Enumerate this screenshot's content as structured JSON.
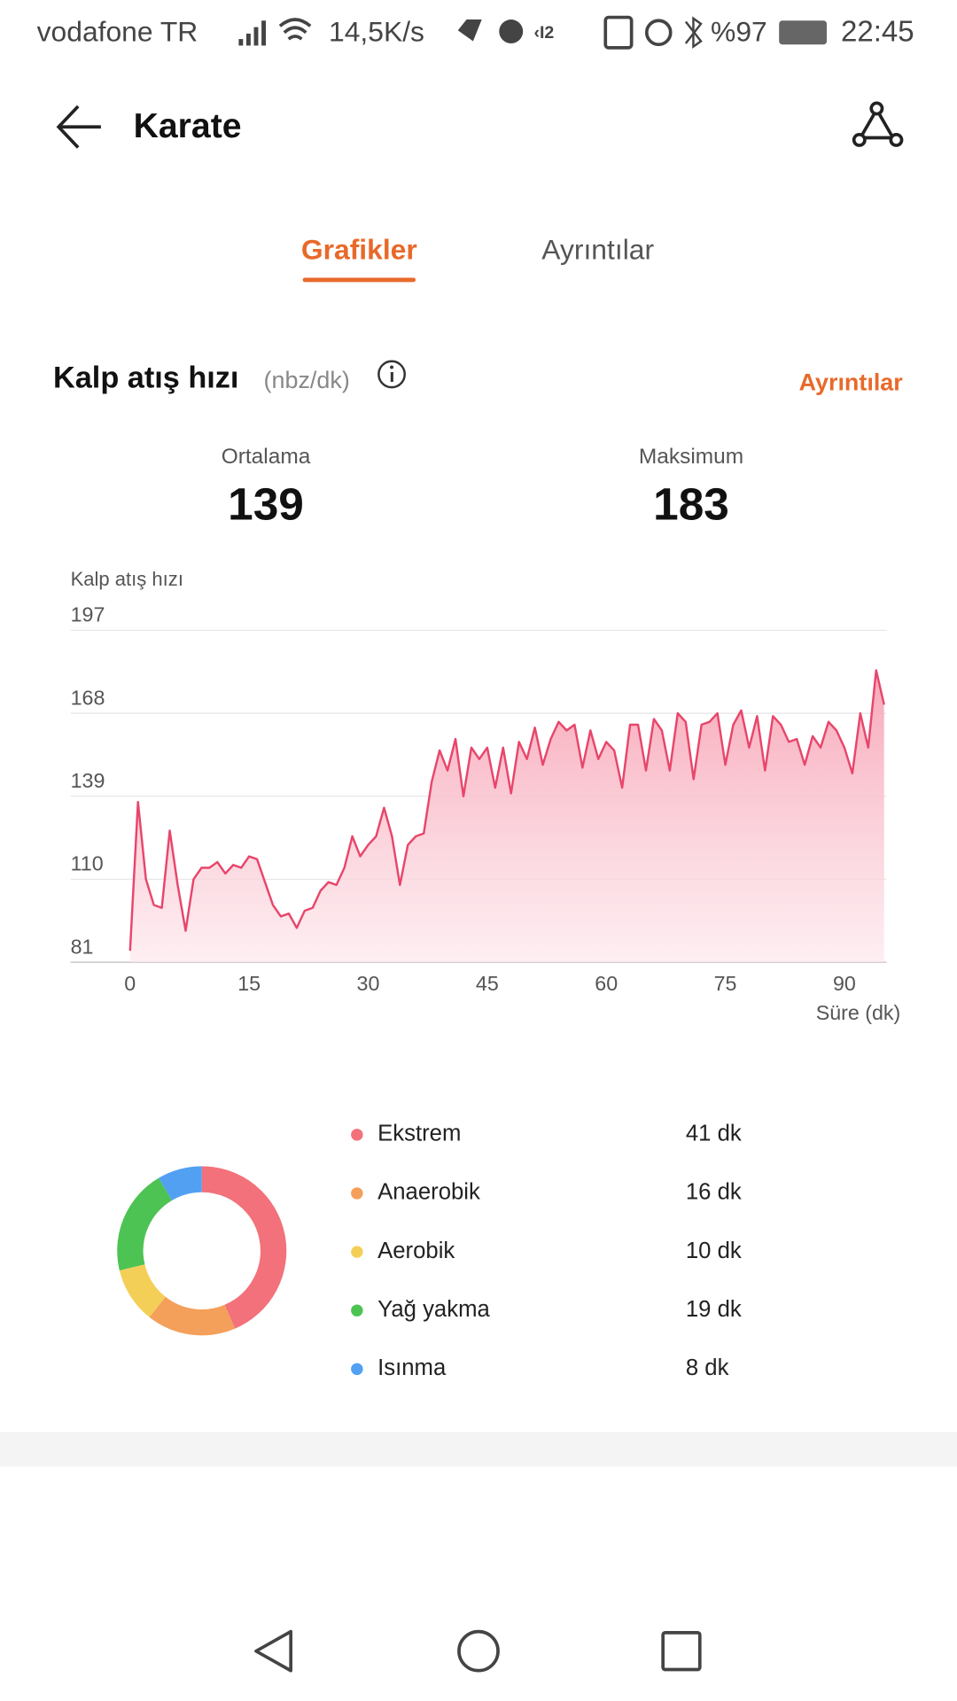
{
  "status_bar": {
    "carrier": "vodafone TR",
    "speed": "14,5K/s",
    "battery": "%97",
    "time": "22:45"
  },
  "header": {
    "title": "Karate"
  },
  "tabs": [
    "Grafikler",
    "Ayrıntılar"
  ],
  "section": {
    "title": "Kalp atış hızı",
    "unit": "(nbz/dk)",
    "link": "Ayrıntılar"
  },
  "stats": [
    {
      "label": "Ortalama",
      "value": 139
    },
    {
      "label": "Maksimum",
      "value": 183
    }
  ],
  "chart_data": [
    {
      "type": "line",
      "ylabel": "Kalp atış hızı",
      "xlabel": "Süre (dk)",
      "x": [
        0,
        1,
        2,
        3,
        4,
        5,
        6,
        7,
        8,
        9,
        10,
        11,
        12,
        13,
        14,
        15,
        16,
        17,
        18,
        19,
        20,
        21,
        22,
        23,
        24,
        25,
        26,
        27,
        28,
        29,
        30,
        31,
        32,
        33,
        34,
        35,
        36,
        37,
        38,
        39,
        40,
        41,
        42,
        43,
        44,
        45,
        46,
        47,
        48,
        49,
        50,
        51,
        52,
        53,
        54,
        55,
        56,
        57,
        58,
        59,
        60,
        61,
        62,
        63,
        64,
        65,
        66,
        67,
        68,
        69,
        70,
        71,
        72,
        73,
        74,
        75,
        76,
        77,
        78,
        79,
        80,
        81,
        82,
        83,
        84,
        85,
        86,
        87,
        88,
        89,
        90,
        91,
        92,
        93,
        94,
        95
      ],
      "series": [
        {
          "color": "#e8466b",
          "values": [
            85,
            137,
            110,
            101,
            100,
            127,
            108,
            92,
            110,
            114,
            114,
            116,
            112,
            115,
            114,
            118,
            117,
            109,
            101,
            97,
            98,
            93,
            99,
            100,
            106,
            109,
            108,
            114,
            125,
            118,
            122,
            125,
            135,
            125,
            108,
            122,
            125,
            126,
            144,
            155,
            148,
            159,
            139,
            156,
            152,
            156,
            142,
            156,
            140,
            158,
            152,
            163,
            150,
            159,
            165,
            162,
            164,
            149,
            162,
            152,
            158,
            155,
            142,
            164,
            164,
            148,
            166,
            162,
            148,
            168,
            165,
            145,
            164,
            165,
            168,
            150,
            164,
            169,
            156,
            167,
            148,
            167,
            164,
            158,
            159,
            150,
            160,
            156,
            165,
            162,
            156,
            147,
            168,
            156,
            183,
            171
          ]
        }
      ],
      "xlim": [
        -7.5,
        95.3
      ],
      "xticks": [
        0,
        15,
        30,
        45,
        60,
        75,
        90
      ],
      "ylim": [
        81,
        197
      ],
      "yticks": [
        81,
        110,
        139,
        168,
        197
      ],
      "grid": true
    },
    {
      "type": "pie",
      "categories": [
        "Ekstrem",
        "Anaerobik",
        "Aerobik",
        "Yağ yakma",
        "Isınma"
      ],
      "values": [
        41,
        16,
        10,
        19,
        8
      ],
      "value_labels": [
        "41 dk",
        "16 dk",
        "10 dk",
        "19 dk",
        "8 dk"
      ],
      "colors": [
        "#f2717a",
        "#f4a05a",
        "#f4cf58",
        "#4dc353",
        "#52a0f2"
      ]
    }
  ]
}
